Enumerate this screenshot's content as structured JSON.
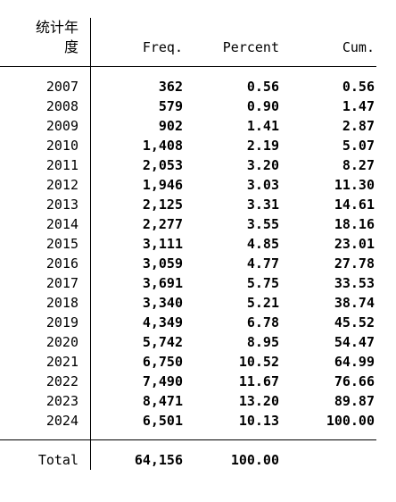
{
  "table": {
    "headers": {
      "var_label_line1": "统计年",
      "var_label_line2": "度",
      "freq": "Freq.",
      "percent": "Percent",
      "cum": "Cum."
    },
    "rows": [
      {
        "year": "2007",
        "freq": "362",
        "percent": "0.56",
        "cum": "0.56"
      },
      {
        "year": "2008",
        "freq": "579",
        "percent": "0.90",
        "cum": "1.47"
      },
      {
        "year": "2009",
        "freq": "902",
        "percent": "1.41",
        "cum": "2.87"
      },
      {
        "year": "2010",
        "freq": "1,408",
        "percent": "2.19",
        "cum": "5.07"
      },
      {
        "year": "2011",
        "freq": "2,053",
        "percent": "3.20",
        "cum": "8.27"
      },
      {
        "year": "2012",
        "freq": "1,946",
        "percent": "3.03",
        "cum": "11.30"
      },
      {
        "year": "2013",
        "freq": "2,125",
        "percent": "3.31",
        "cum": "14.61"
      },
      {
        "year": "2014",
        "freq": "2,277",
        "percent": "3.55",
        "cum": "18.16"
      },
      {
        "year": "2015",
        "freq": "3,111",
        "percent": "4.85",
        "cum": "23.01"
      },
      {
        "year": "2016",
        "freq": "3,059",
        "percent": "4.77",
        "cum": "27.78"
      },
      {
        "year": "2017",
        "freq": "3,691",
        "percent": "5.75",
        "cum": "33.53"
      },
      {
        "year": "2018",
        "freq": "3,340",
        "percent": "5.21",
        "cum": "38.74"
      },
      {
        "year": "2019",
        "freq": "4,349",
        "percent": "6.78",
        "cum": "45.52"
      },
      {
        "year": "2020",
        "freq": "5,742",
        "percent": "8.95",
        "cum": "54.47"
      },
      {
        "year": "2021",
        "freq": "6,750",
        "percent": "10.52",
        "cum": "64.99"
      },
      {
        "year": "2022",
        "freq": "7,490",
        "percent": "11.67",
        "cum": "76.66"
      },
      {
        "year": "2023",
        "freq": "8,471",
        "percent": "13.20",
        "cum": "89.87"
      },
      {
        "year": "2024",
        "freq": "6,501",
        "percent": "10.13",
        "cum": "100.00"
      }
    ],
    "total": {
      "label": "Total",
      "freq": "64,156",
      "percent": "100.00"
    }
  }
}
